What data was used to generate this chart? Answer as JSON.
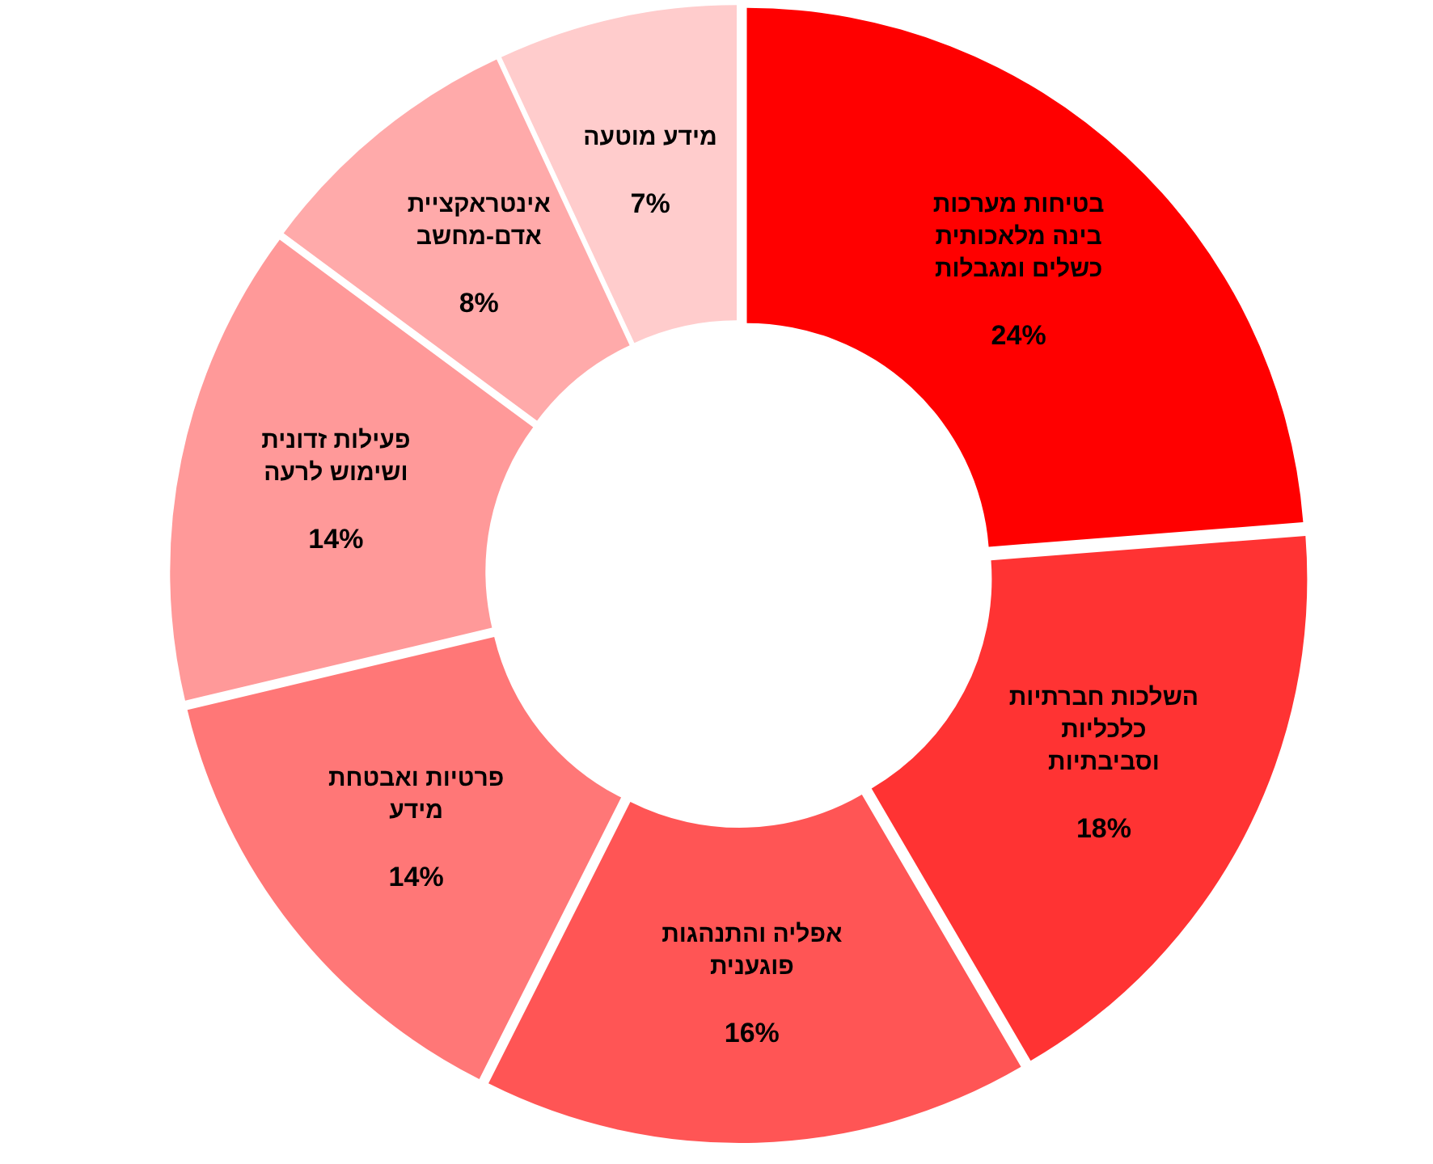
{
  "chart_data": {
    "type": "donut",
    "categories": [
      "בטיחות מערכות בינה מלאכותית כשלים ומגבלות",
      "השלכות חברתיות כלכליות וסביבתיות",
      "אפליה והתנהגות פוגענית",
      "פרטיות ואבטחת מידע",
      "פעילות זדונית ושימוש לרעה",
      "אינטראקציית אדם-מחשב",
      "מידע מוטעה"
    ],
    "values": [
      24,
      18,
      16,
      14,
      14,
      8,
      7
    ],
    "value_labels": [
      "24%",
      "18%",
      "16%",
      "14%",
      "14%",
      "8%",
      "7%"
    ],
    "colors": [
      "#ff0000",
      "#ff3333",
      "#ff5555",
      "#ff7777",
      "#ff9999",
      "#ffaaaa",
      "#ffcccc"
    ]
  }
}
